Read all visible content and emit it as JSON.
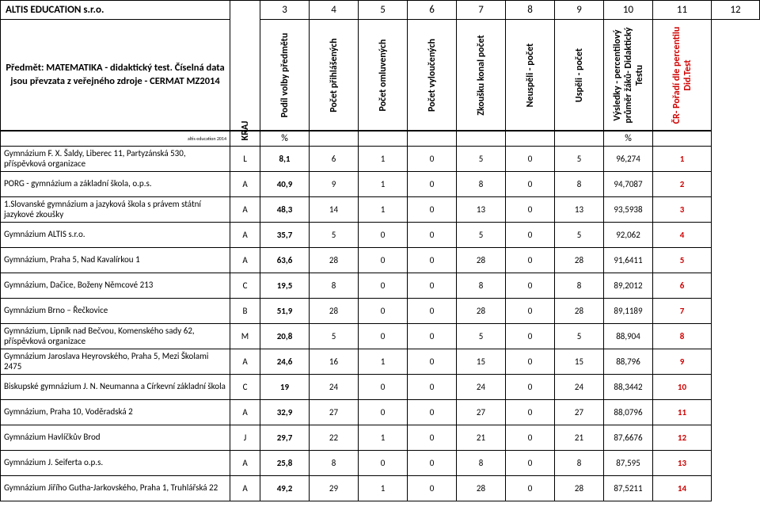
{
  "header": {
    "company": "ALTIS EDUCATION s.r.o.",
    "subject": "Předmět: MATEMATIKA - didaktický test. Číselná data jsou převzata z veřejného zdroje - CERMAT MZ2014",
    "topNumbers": [
      "3",
      "4",
      "5",
      "6",
      "7",
      "8",
      "9",
      "10",
      "11",
      "12"
    ],
    "cols": [
      "KRAJ",
      "Podíl volby předmětu",
      "Počet přihlášených",
      "Počet omluvených",
      "Počet vyloučených",
      "Zkoušku konal počet",
      "Neuspěli - počet",
      "Uspěli - počet",
      "Výsledky - percentilový průměr žáků- Didaktický Testu",
      "ČR- Pořadí dle percentilu Did.Test"
    ],
    "pctrow_small": "altis education 2014",
    "pct": "%"
  },
  "rows": [
    {
      "school": "Gymnázium F. X. Šaldy, Liberec 11, Partyzánská 530, příspěvková organizace",
      "kraj": "L",
      "v": [
        "8,1",
        "6",
        "1",
        "0",
        "5",
        "0",
        "5",
        "96,274",
        "1"
      ]
    },
    {
      "school": "PORG - gymnázium a základní škola, o.p.s.",
      "kraj": "A",
      "v": [
        "40,9",
        "9",
        "1",
        "0",
        "8",
        "0",
        "8",
        "94,7087",
        "2"
      ]
    },
    {
      "school": "1.Slovanské gymnázium a jazyková škola s právem státní jazykové zkoušky",
      "kraj": "A",
      "v": [
        "48,3",
        "14",
        "1",
        "0",
        "13",
        "0",
        "13",
        "93,5938",
        "3"
      ]
    },
    {
      "school": "Gymnázium ALTIS s.r.o.",
      "kraj": "A",
      "v": [
        "35,7",
        "5",
        "0",
        "0",
        "5",
        "0",
        "5",
        "92,062",
        "4"
      ]
    },
    {
      "school": "Gymnázium, Praha 5, Nad Kavalírkou 1",
      "kraj": "A",
      "v": [
        "63,6",
        "28",
        "0",
        "0",
        "28",
        "0",
        "28",
        "91,6411",
        "5"
      ]
    },
    {
      "school": "Gymnázium, Dačice, Boženy Němcové 213",
      "kraj": "C",
      "v": [
        "19,5",
        "8",
        "0",
        "0",
        "8",
        "0",
        "8",
        "89,2012",
        "6"
      ]
    },
    {
      "school": "Gymnázium Brno – Řečkovice",
      "kraj": "B",
      "v": [
        "51,9",
        "28",
        "0",
        "0",
        "28",
        "0",
        "28",
        "89,1189",
        "7"
      ]
    },
    {
      "school": "Gymnázium, Lipník nad Bečvou, Komenského sady 62, příspěvková organizace",
      "kraj": "M",
      "v": [
        "20,8",
        "5",
        "0",
        "0",
        "5",
        "0",
        "5",
        "88,904",
        "8"
      ]
    },
    {
      "school": "Gymnázium Jaroslava Heyrovského, Praha 5, Mezi Školami 2475",
      "kraj": "A",
      "v": [
        "24,6",
        "16",
        "1",
        "0",
        "15",
        "0",
        "15",
        "88,796",
        "9"
      ]
    },
    {
      "school": "Biskupské gymnázium J. N. Neumanna a Církevní základní škola",
      "kraj": "C",
      "v": [
        "19",
        "24",
        "0",
        "0",
        "24",
        "0",
        "24",
        "88,3442",
        "10"
      ]
    },
    {
      "school": "Gymnázium, Praha 10, Voděradská 2",
      "kraj": "A",
      "v": [
        "32,9",
        "27",
        "0",
        "0",
        "27",
        "0",
        "27",
        "88,0796",
        "11"
      ]
    },
    {
      "school": "Gymnázium Havlíčkův Brod",
      "kraj": "J",
      "v": [
        "29,7",
        "22",
        "1",
        "0",
        "21",
        "0",
        "21",
        "87,6676",
        "12"
      ]
    },
    {
      "school": "Gymnázium J. Seiferta o.p.s.",
      "kraj": "A",
      "v": [
        "25,8",
        "8",
        "0",
        "0",
        "8",
        "0",
        "8",
        "87,595",
        "13"
      ]
    },
    {
      "school": "Gymnázium Jiřího Gutha-Jarkovského, Praha 1, Truhlářská 22",
      "kraj": "A",
      "v": [
        "49,2",
        "29",
        "1",
        "0",
        "28",
        "0",
        "28",
        "87,5211",
        "14"
      ]
    }
  ],
  "style": {
    "redColor": "#d00000",
    "fontSizeBody": 11,
    "fontSizeHeader": 13
  }
}
